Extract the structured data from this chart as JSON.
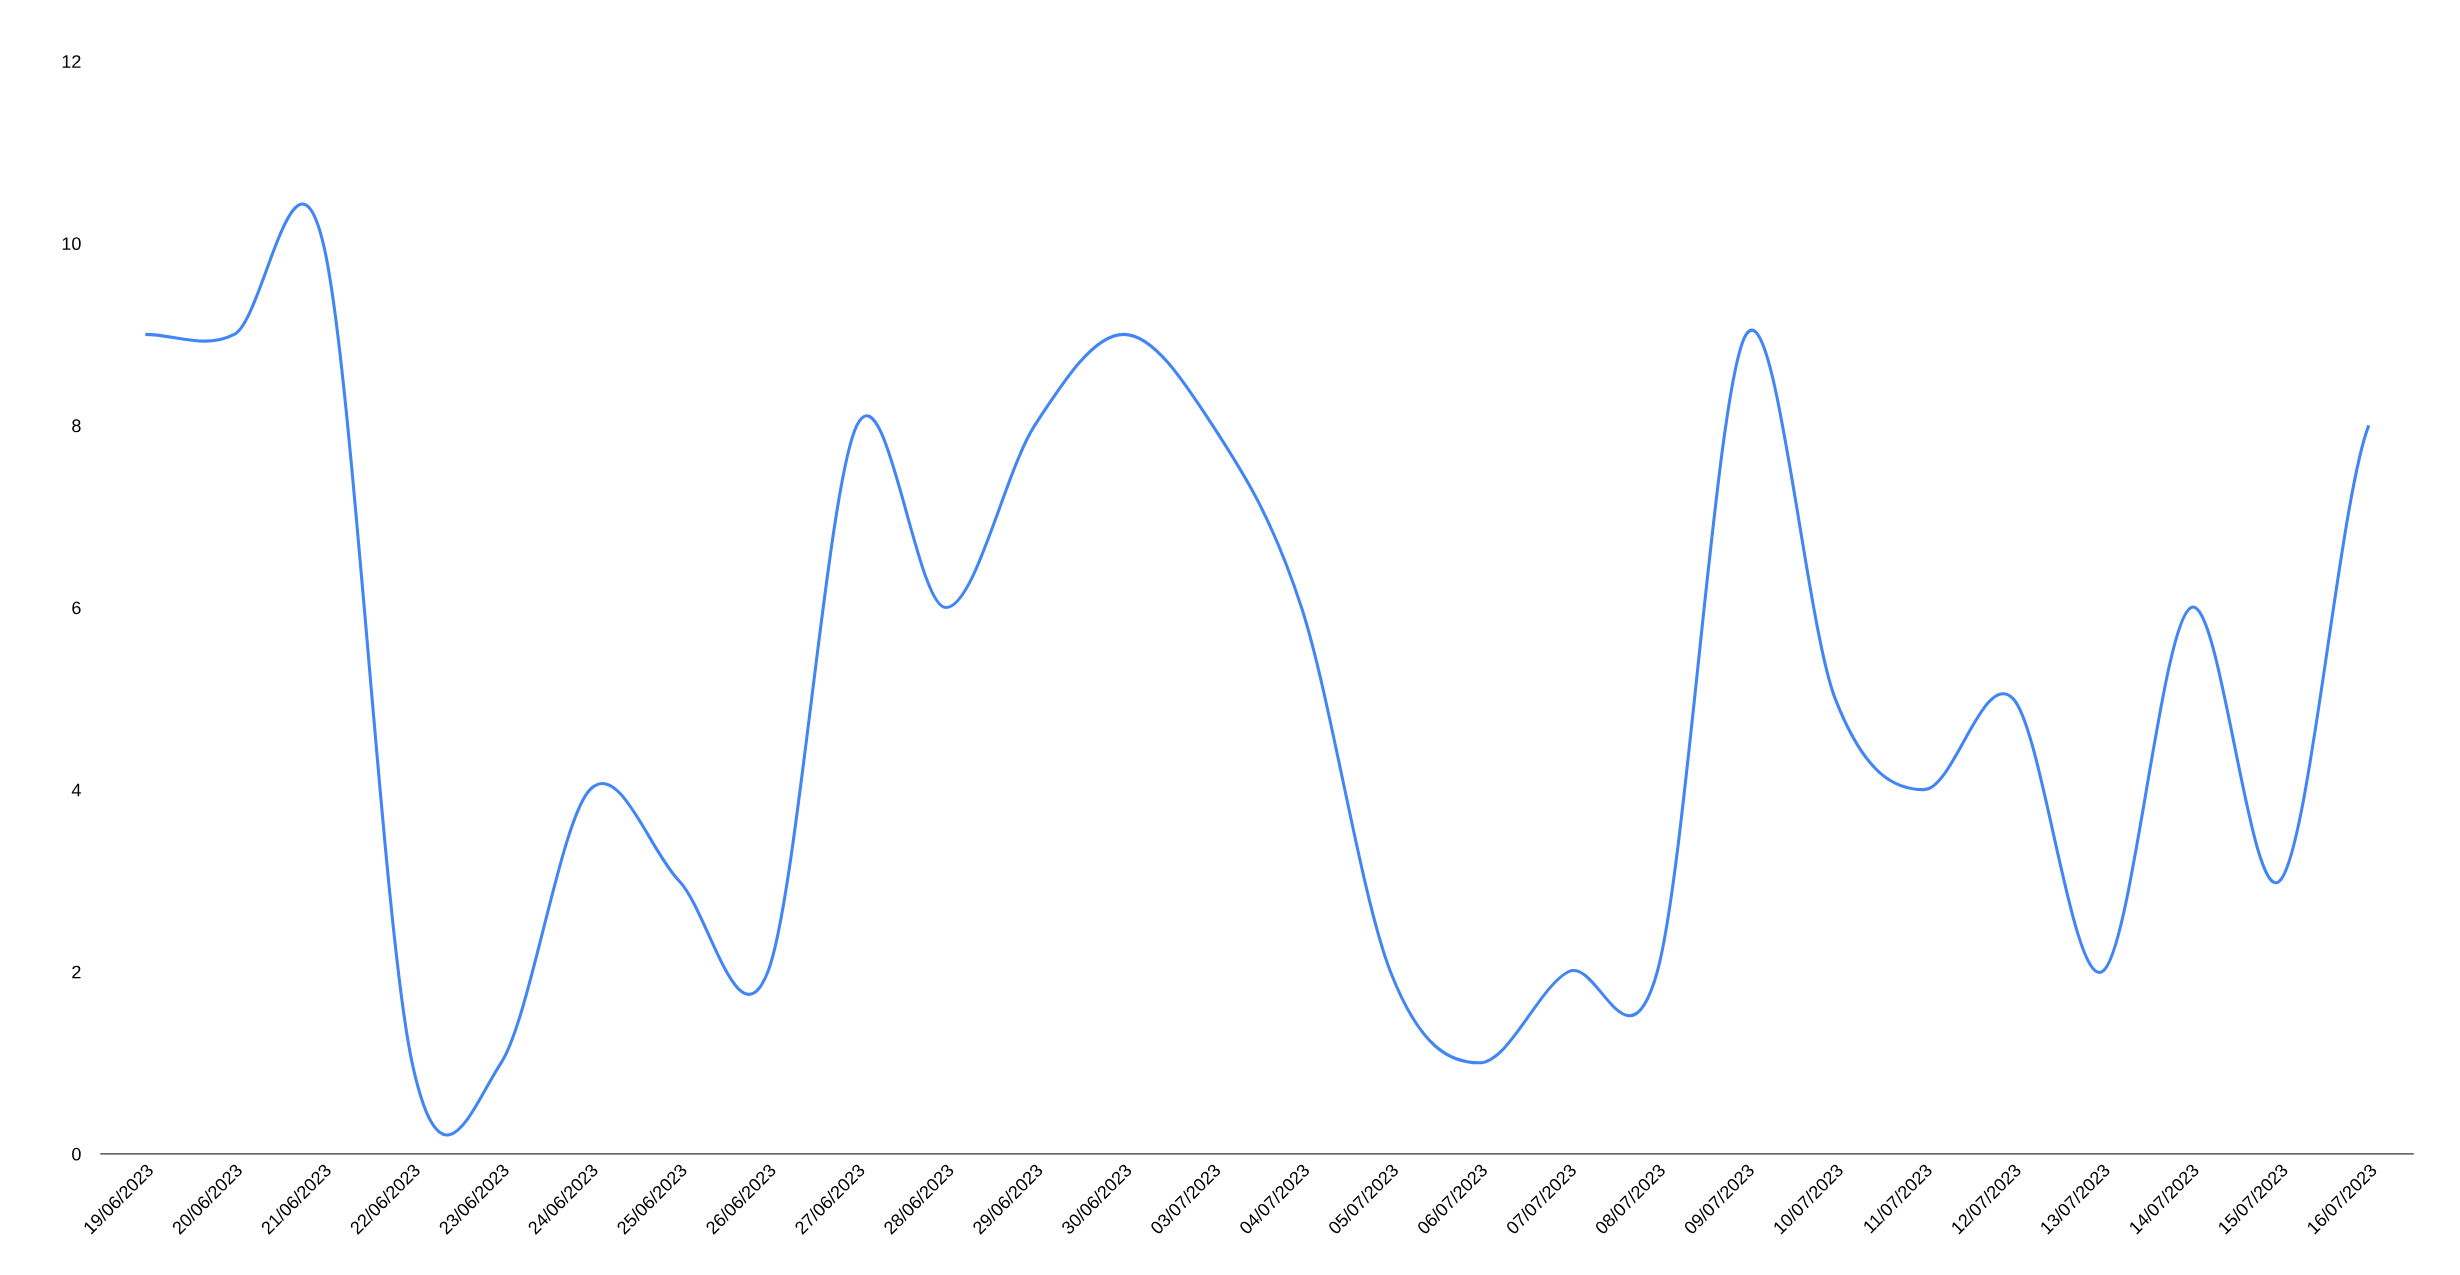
{
  "chart_data": {
    "type": "line",
    "categories": [
      "19/06/2023",
      "20/06/2023",
      "21/06/2023",
      "22/06/2023",
      "23/06/2023",
      "24/06/2023",
      "25/06/2023",
      "26/06/2023",
      "27/06/2023",
      "28/06/2023",
      "29/06/2023",
      "30/06/2023",
      "03/07/2023",
      "04/07/2023",
      "05/07/2023",
      "06/07/2023",
      "07/07/2023",
      "08/07/2023",
      "09/07/2023",
      "10/07/2023",
      "11/07/2023",
      "12/07/2023",
      "13/07/2023",
      "14/07/2023",
      "15/07/2023",
      "16/07/2023"
    ],
    "series": [
      {
        "color": "#4285f4",
        "values": [
          9,
          9,
          10,
          1,
          1,
          4,
          3,
          2,
          8,
          6,
          8,
          9,
          8,
          6,
          2,
          1,
          2,
          2,
          9,
          5,
          4,
          5,
          2,
          6,
          3,
          8
        ]
      }
    ],
    "ylim": [
      0,
      12
    ],
    "yticks": [
      0,
      2,
      4,
      6,
      8,
      10,
      12
    ],
    "grid": false,
    "marker": "none",
    "line_style": "solid"
  }
}
